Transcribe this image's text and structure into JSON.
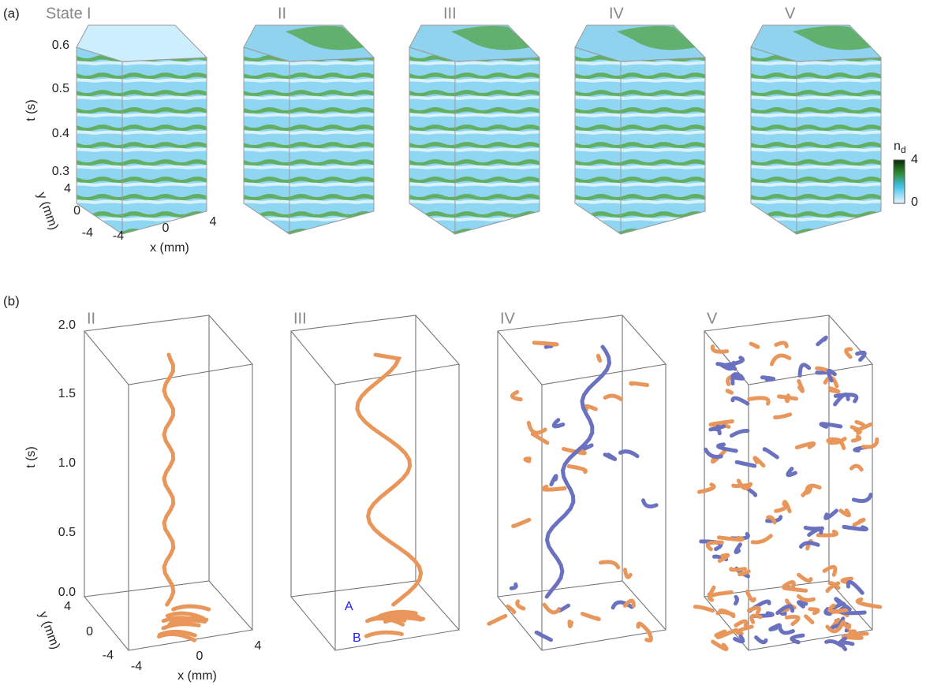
{
  "panel_a": {
    "label": "(a)",
    "state_prefix": "State",
    "states": [
      "I",
      "II",
      "III",
      "IV",
      "V"
    ],
    "t_label": "t (s)",
    "t_ticks": [
      "0.6",
      "0.5",
      "0.4",
      "0.3"
    ],
    "y_label": "y (mm)",
    "y_ticks": [
      "4",
      "0",
      "-4"
    ],
    "x_label": "x (mm)",
    "x_ticks": [
      "-4",
      "0",
      "4"
    ],
    "colorbar": {
      "label": "n",
      "subscript": "d",
      "ticks": [
        "4",
        "0"
      ]
    }
  },
  "panel_b": {
    "label": "(b)",
    "states": [
      "II",
      "III",
      "IV",
      "V"
    ],
    "t_label": "t (s)",
    "t_ticks": [
      "2.0",
      "1.5",
      "1.0",
      "0.5",
      "0.0"
    ],
    "y_label": "y (mm)",
    "y_ticks": [
      "4",
      "0",
      "-4"
    ],
    "x_label": "x (mm)",
    "x_ticks": [
      "-4",
      "0",
      "4"
    ],
    "markers": [
      "A",
      "B"
    ]
  }
}
